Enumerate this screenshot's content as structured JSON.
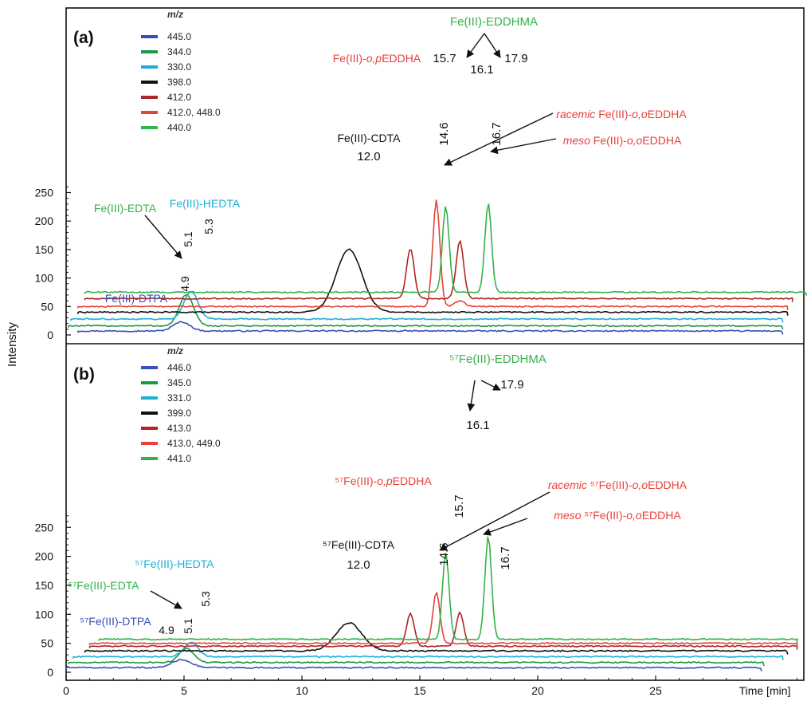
{
  "figure": {
    "y_axis_label": "Intensity",
    "x_axis_label": "Time [min]",
    "x_ticks": [
      "0",
      "5",
      "10",
      "15",
      "20",
      "25"
    ]
  },
  "chart_data": [
    {
      "type": "line",
      "panel_label": "(a)",
      "legend_title": "m/z",
      "legend_placement": "top-left",
      "ylim": [
        0,
        270
      ],
      "xlim": [
        0,
        31.4
      ],
      "y_ticks": [
        0,
        50,
        100,
        150,
        200,
        250
      ],
      "x_ticks": [
        0,
        5,
        10,
        15,
        20,
        25
      ],
      "series": [
        {
          "name": "445.0",
          "color": "#3b4fb8",
          "trace_x": [
            0.5,
            30.4
          ],
          "baseline": 7,
          "peaks": [
            [
              4.9,
              16,
              0.35
            ]
          ]
        },
        {
          "name": "344.0",
          "color": "#1a9a40",
          "trace_x": [
            0.1,
            30.4
          ],
          "baseline": 16,
          "peaks": [
            [
              5.1,
              55,
              0.3
            ]
          ]
        },
        {
          "name": "330.0",
          "color": "#1ab0d6",
          "trace_x": [
            0.2,
            30.4
          ],
          "baseline": 28,
          "peaks": [
            [
              5.3,
              48,
              0.3
            ]
          ]
        },
        {
          "name": "398.0",
          "color": "#111111",
          "trace_x": [
            0.5,
            30.6
          ],
          "baseline": 40,
          "peaks": [
            [
              12.0,
              110,
              0.55
            ]
          ]
        },
        {
          "name": "412.0",
          "color": "#b02525",
          "trace_x": [
            0.8,
            30.8
          ],
          "baseline": 64,
          "peaks": [
            [
              14.6,
              88,
              0.16
            ],
            [
              16.7,
              101,
              0.16
            ]
          ]
        },
        {
          "name": "412.0, 448.0",
          "color": "#e8413a",
          "trace_x": [
            0.5,
            30.6
          ],
          "baseline": 50,
          "peaks": [
            [
              15.7,
              186,
              0.15
            ],
            [
              16.7,
              10,
              0.2
            ]
          ]
        },
        {
          "name": "440.0",
          "color": "#34b34a",
          "trace_x": [
            0.8,
            31.4
          ],
          "baseline": 75,
          "peaks": [
            [
              16.1,
              152,
              0.14
            ],
            [
              17.9,
              156,
              0.14
            ]
          ]
        }
      ],
      "annotations": [
        {
          "text": "Fe(III)-EDDHMA",
          "color": "#34b34a"
        },
        {
          "text": "15.7",
          "color": "#111111"
        },
        {
          "text": "16.1",
          "color": "#111111"
        },
        {
          "text": "17.9",
          "color": "#111111"
        },
        {
          "text": "Fe(III)-o,pEDDHA",
          "color": "#e8413a"
        },
        {
          "text": "racemic Fe(III)-o,oEDDHA",
          "color": "#e8413a"
        },
        {
          "text": "meso Fe(III)-o,oEDDHA",
          "color": "#e8413a"
        },
        {
          "text": "14.6",
          "color": "#111111"
        },
        {
          "text": "16.7",
          "color": "#111111"
        },
        {
          "text": "Fe(III)-CDTA",
          "color": "#111111"
        },
        {
          "text": "12.0",
          "color": "#111111"
        },
        {
          "text": "Fe(III)-EDTA",
          "color": "#34b34a"
        },
        {
          "text": "Fe(III)-HEDTA",
          "color": "#1ab0d6"
        },
        {
          "text": "5.1",
          "color": "#111111"
        },
        {
          "text": "5.3",
          "color": "#111111"
        },
        {
          "text": "Fe(III)-DTPA",
          "color": "#3b4fb8"
        },
        {
          "text": "4.9",
          "color": "#111111"
        }
      ]
    },
    {
      "type": "line",
      "panel_label": "(b)",
      "legend_title": "m/z",
      "legend_placement": "top-left",
      "ylim": [
        0,
        280
      ],
      "xlim": [
        0,
        31.4
      ],
      "y_ticks": [
        0,
        50,
        100,
        150,
        200,
        250
      ],
      "x_ticks": [
        0,
        5,
        10,
        15,
        20,
        25
      ],
      "series": [
        {
          "name": "446.0",
          "color": "#3b4fb8",
          "trace_x": [
            0.0,
            29.5
          ],
          "baseline": 8,
          "peaks": [
            [
              4.9,
              14,
              0.4
            ]
          ]
        },
        {
          "name": "345.0",
          "color": "#1a9a40",
          "trace_x": [
            0.1,
            29.6
          ],
          "baseline": 17,
          "peaks": [
            [
              5.1,
              25,
              0.3
            ]
          ]
        },
        {
          "name": "331.0",
          "color": "#1ab0d6",
          "trace_x": [
            0.3,
            30.4
          ],
          "baseline": 27,
          "peaks": [
            [
              5.3,
              25,
              0.3
            ]
          ]
        },
        {
          "name": "399.0",
          "color": "#111111",
          "trace_x": [
            0.8,
            30.6
          ],
          "baseline": 37,
          "peaks": [
            [
              12.0,
              48,
              0.55
            ]
          ]
        },
        {
          "name": "413.0",
          "color": "#b02525",
          "trace_x": [
            1.0,
            31.0
          ],
          "baseline": 45,
          "peaks": [
            [
              14.6,
              56,
              0.16
            ],
            [
              16.7,
              58,
              0.16
            ]
          ]
        },
        {
          "name": "413.0, 449.0",
          "color": "#e8413a",
          "trace_x": [
            1.0,
            31.0
          ],
          "baseline": 50,
          "peaks": [
            [
              15.7,
              88,
              0.15
            ]
          ]
        },
        {
          "name": "441.0",
          "color": "#34b34a",
          "trace_x": [
            1.4,
            31.0
          ],
          "baseline": 57,
          "peaks": [
            [
              16.1,
              148,
              0.14
            ],
            [
              17.9,
              178,
              0.14
            ]
          ]
        }
      ],
      "annotations": [
        {
          "text": "⁵⁷Fe(III)-EDDHMA",
          "color": "#34b34a"
        },
        {
          "text": "16.1",
          "color": "#111111"
        },
        {
          "text": "17.9",
          "color": "#111111"
        },
        {
          "text": "⁵⁷Fe(III)-o,pEDDHA",
          "color": "#e8413a"
        },
        {
          "text": "15.7",
          "color": "#111111"
        },
        {
          "text": "racemic ⁵⁷Fe(III)-o,oEDDHA",
          "color": "#e8413a"
        },
        {
          "text": "meso ⁵⁷Fe(III)-o,oEDDHA",
          "color": "#e8413a"
        },
        {
          "text": "14.6",
          "color": "#111111"
        },
        {
          "text": "16.7",
          "color": "#111111"
        },
        {
          "text": "⁵⁷Fe(III)-CDTA",
          "color": "#111111"
        },
        {
          "text": "12.0",
          "color": "#111111"
        },
        {
          "text": "⁵⁷Fe(III)-HEDTA",
          "color": "#1ab0d6"
        },
        {
          "text": "⁵⁷Fe(III)-EDTA",
          "color": "#34b34a"
        },
        {
          "text": "5.1",
          "color": "#111111"
        },
        {
          "text": "5.3",
          "color": "#111111"
        },
        {
          "text": "⁵⁷Fe(III)-DTPA",
          "color": "#3b4fb8"
        },
        {
          "text": "4.9",
          "color": "#111111"
        }
      ]
    }
  ]
}
